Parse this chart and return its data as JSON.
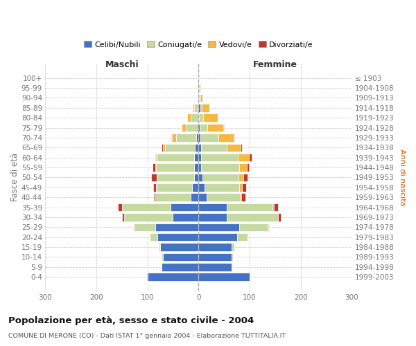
{
  "age_groups": [
    "100+",
    "95-99",
    "90-94",
    "85-89",
    "80-84",
    "75-79",
    "70-74",
    "65-69",
    "60-64",
    "55-59",
    "50-54",
    "45-49",
    "40-44",
    "35-39",
    "30-34",
    "25-29",
    "20-24",
    "15-19",
    "10-14",
    "5-9",
    "0-4"
  ],
  "birth_years": [
    "≤ 1903",
    "1904-1908",
    "1909-1913",
    "1914-1918",
    "1919-1923",
    "1924-1928",
    "1929-1933",
    "1934-1938",
    "1939-1943",
    "1944-1948",
    "1949-1953",
    "1954-1958",
    "1959-1963",
    "1964-1968",
    "1969-1973",
    "1974-1978",
    "1979-1983",
    "1984-1988",
    "1989-1993",
    "1994-1998",
    "1999-2003"
  ],
  "maschi_celibi": [
    0,
    0,
    0,
    2,
    1,
    3,
    4,
    7,
    8,
    8,
    9,
    12,
    16,
    55,
    50,
    85,
    80,
    75,
    70,
    72,
    100
  ],
  "maschi_coniugati": [
    0,
    0,
    1,
    6,
    14,
    22,
    40,
    58,
    72,
    75,
    72,
    70,
    68,
    95,
    95,
    40,
    15,
    3,
    2,
    1,
    2
  ],
  "maschi_vedovi": [
    0,
    0,
    0,
    3,
    7,
    8,
    8,
    5,
    3,
    2,
    1,
    1,
    0,
    0,
    0,
    0,
    0,
    0,
    0,
    0,
    0
  ],
  "maschi_divorziati": [
    0,
    0,
    0,
    0,
    0,
    0,
    1,
    2,
    2,
    5,
    10,
    5,
    3,
    8,
    5,
    2,
    1,
    0,
    0,
    0,
    0
  ],
  "femmine_nubili": [
    0,
    0,
    1,
    3,
    1,
    2,
    4,
    5,
    5,
    5,
    8,
    12,
    16,
    55,
    55,
    80,
    75,
    65,
    65,
    65,
    100
  ],
  "femmine_coniugate": [
    0,
    1,
    2,
    4,
    8,
    15,
    35,
    50,
    72,
    75,
    70,
    68,
    65,
    90,
    100,
    55,
    20,
    5,
    2,
    1,
    2
  ],
  "femmine_vedove": [
    0,
    2,
    5,
    14,
    28,
    32,
    30,
    28,
    22,
    14,
    10,
    5,
    3,
    2,
    1,
    1,
    0,
    0,
    0,
    0,
    0
  ],
  "femmine_divorziate": [
    0,
    0,
    0,
    0,
    0,
    1,
    1,
    2,
    5,
    5,
    8,
    8,
    8,
    8,
    5,
    2,
    1,
    0,
    0,
    0,
    0
  ],
  "color_celibi": "#4472C4",
  "color_coniugati": "#C5D9A0",
  "color_vedovi": "#F4B942",
  "color_divorziati": "#C0362C",
  "xlim": 300,
  "xticks": [
    -300,
    -200,
    -100,
    0,
    100,
    200,
    300
  ],
  "xticklabels": [
    "300",
    "200",
    "100",
    "0",
    "100",
    "200",
    "300"
  ],
  "title": "Popolazione per età, sesso e stato civile - 2004",
  "subtitle": "COMUNE DI MERONE (CO) - Dati ISTAT 1° gennaio 2004 - Elaborazione TUTTITALIA.IT",
  "ylabel_left": "Fasce di età",
  "ylabel_right": "Anni di nascita",
  "label_maschi": "Maschi",
  "label_femmine": "Femmine",
  "legend_labels": [
    "Celibi/Nubili",
    "Coniugati/e",
    "Vedovi/e",
    "Divorziati/e"
  ],
  "bg_color": "#ffffff",
  "grid_color": "#cccccc",
  "tick_color": "#777777",
  "spine_color": "#cccccc"
}
